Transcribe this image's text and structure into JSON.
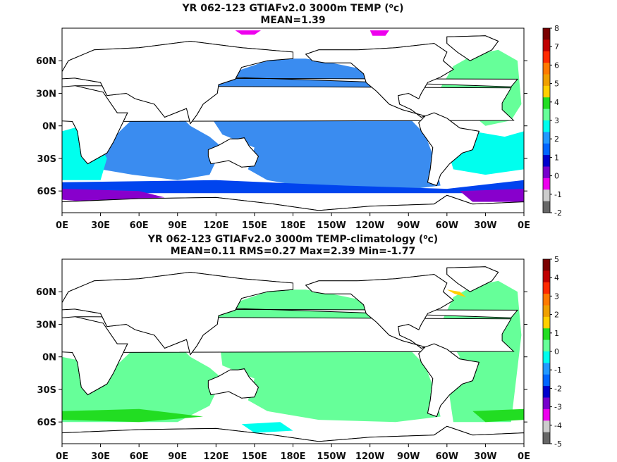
{
  "chart_data": [
    {
      "type": "heatmap",
      "title_main": "YR 062-123 GTIAFv2.0 3000m TEMP (",
      "title_unit": "o",
      "title_unit_tail": "c)",
      "subtitle": "MEAN=1.39",
      "x_ticks": [
        "0E",
        "30E",
        "60E",
        "90E",
        "120E",
        "150E",
        "180E",
        "150W",
        "120W",
        "90W",
        "60W",
        "30W",
        "0E"
      ],
      "y_ticks": [
        "60N",
        "30N",
        "0N",
        "30S",
        "60S"
      ],
      "lat_range": [
        -80,
        90
      ],
      "lon_range": [
        0,
        360
      ],
      "colorbar": {
        "labels": [
          "8",
          "7",
          "6",
          "5",
          "4",
          "3",
          "2",
          "1",
          "0",
          "-1",
          "-2"
        ],
        "colors": [
          "#7a0000",
          "#c00000",
          "#ff2a00",
          "#ff7a00",
          "#f0a000",
          "#ffd000",
          "#22dd22",
          "#66ff99",
          "#00ffee",
          "#2299ff",
          "#0066ff",
          "#0000cc",
          "#7700cc",
          "#ee00ee",
          "#cccccc",
          "#666666"
        ]
      },
      "regions": [
        {
          "name": "pacific",
          "color": "#3a8cf0",
          "points": [
            [
              115,
              40
            ],
            [
              140,
              52
            ],
            [
              165,
              62
            ],
            [
              190,
              62
            ],
            [
              210,
              58
            ],
            [
              235,
              52
            ],
            [
              245,
              35
            ],
            [
              255,
              20
            ],
            [
              270,
              8
            ],
            [
              283,
              -8
            ],
            [
              290,
              -30
            ],
            [
              295,
              -55
            ],
            [
              260,
              -60
            ],
            [
              200,
              -58
            ],
            [
              160,
              -50
            ],
            [
              145,
              -40
            ],
            [
              150,
              -20
            ],
            [
              125,
              -8
            ],
            [
              115,
              10
            ]
          ]
        },
        {
          "name": "indian",
          "color": "#3a8cf0",
          "points": [
            [
              45,
              -5
            ],
            [
              60,
              12
            ],
            [
              75,
              5
            ],
            [
              90,
              12
            ],
            [
              100,
              0
            ],
            [
              115,
              -10
            ],
            [
              125,
              -20
            ],
            [
              115,
              -45
            ],
            [
              90,
              -50
            ],
            [
              55,
              -45
            ],
            [
              30,
              -40
            ],
            [
              35,
              -20
            ]
          ]
        },
        {
          "name": "atlantic",
          "color": "#66ff99",
          "points": [
            [
              295,
              35
            ],
            [
              305,
              55
            ],
            [
              320,
              65
            ],
            [
              340,
              70
            ],
            [
              355,
              60
            ],
            [
              358,
              20
            ],
            [
              350,
              5
            ],
            [
              330,
              0
            ],
            [
              320,
              10
            ],
            [
              300,
              20
            ]
          ]
        },
        {
          "name": "south-atlantic",
          "color": "#00ffee",
          "points": [
            [
              300,
              -5
            ],
            [
              320,
              -5
            ],
            [
              345,
              -10
            ],
            [
              360,
              -5
            ],
            [
              360,
              -40
            ],
            [
              330,
              -45
            ],
            [
              305,
              -40
            ],
            [
              300,
              -20
            ]
          ]
        },
        {
          "name": "west-indian",
          "color": "#00ffee",
          "points": [
            [
              0,
              -5
            ],
            [
              15,
              0
            ],
            [
              25,
              -10
            ],
            [
              35,
              -30
            ],
            [
              30,
              -50
            ],
            [
              0,
              -50
            ]
          ]
        },
        {
          "name": "southern-blue",
          "color": "#0044ee",
          "points": [
            [
              0,
              -52
            ],
            [
              120,
              -50
            ],
            [
              220,
              -55
            ],
            [
              300,
              -58
            ],
            [
              360,
              -50
            ],
            [
              360,
              -62
            ],
            [
              0,
              -62
            ]
          ]
        },
        {
          "name": "southern-purple",
          "color": "#8800cc",
          "points": [
            [
              0,
              -58
            ],
            [
              60,
              -60
            ],
            [
              80,
              -66
            ],
            [
              20,
              -70
            ],
            [
              0,
              -68
            ]
          ]
        },
        {
          "name": "southern-purple-2",
          "color": "#8800cc",
          "points": [
            [
              310,
              -60
            ],
            [
              360,
              -58
            ],
            [
              360,
              -70
            ],
            [
              320,
              -70
            ]
          ]
        },
        {
          "name": "arctic-magenta",
          "color": "#ee00ee",
          "points": [
            [
              135,
              88
            ],
            [
              155,
              88
            ],
            [
              150,
              84
            ],
            [
              140,
              84
            ]
          ]
        },
        {
          "name": "arctic-magenta-2",
          "color": "#ee00ee",
          "points": [
            [
              240,
              88
            ],
            [
              255,
              88
            ],
            [
              252,
              83
            ],
            [
              242,
              83
            ]
          ]
        }
      ]
    },
    {
      "type": "heatmap",
      "title_main": "YR 062-123 GTIAFv2.0 3000m TEMP-climatology (",
      "title_unit": "o",
      "title_unit_tail": "c)",
      "subtitle": "MEAN=0.11   RMS=0.27   Max=2.39   Min=-1.77",
      "x_ticks": [
        "0E",
        "30E",
        "60E",
        "90E",
        "120E",
        "150E",
        "180E",
        "150W",
        "120W",
        "90W",
        "60W",
        "30W",
        "0E"
      ],
      "y_ticks": [
        "60N",
        "30N",
        "0N",
        "30S",
        "60S"
      ],
      "lat_range": [
        -80,
        90
      ],
      "lon_range": [
        0,
        360
      ],
      "colorbar": {
        "labels": [
          "5",
          "4",
          "3",
          "2",
          "1",
          "0",
          "-1",
          "-2",
          "-3",
          "-4",
          "-5"
        ],
        "colors": [
          "#7a0000",
          "#c00000",
          "#ff2a00",
          "#ff7a00",
          "#f0a000",
          "#ffd000",
          "#22dd22",
          "#66ff99",
          "#00ffee",
          "#2299ff",
          "#0066ff",
          "#0000cc",
          "#7700cc",
          "#ee00ee",
          "#cccccc",
          "#666666"
        ]
      },
      "regions": [
        {
          "name": "pacific",
          "color": "#66ff99",
          "points": [
            [
              120,
              40
            ],
            [
              140,
              52
            ],
            [
              165,
              62
            ],
            [
              190,
              62
            ],
            [
              210,
              58
            ],
            [
              235,
              52
            ],
            [
              245,
              35
            ],
            [
              255,
              20
            ],
            [
              270,
              8
            ],
            [
              283,
              -8
            ],
            [
              290,
              -30
            ],
            [
              295,
              -55
            ],
            [
              260,
              -60
            ],
            [
              200,
              -58
            ],
            [
              160,
              -50
            ],
            [
              145,
              -40
            ],
            [
              150,
              -20
            ],
            [
              125,
              -8
            ]
          ]
        },
        {
          "name": "indian",
          "color": "#66ff99",
          "points": [
            [
              0,
              0
            ],
            [
              20,
              -5
            ],
            [
              45,
              -5
            ],
            [
              60,
              12
            ],
            [
              90,
              12
            ],
            [
              100,
              0
            ],
            [
              115,
              -10
            ],
            [
              125,
              -20
            ],
            [
              115,
              -45
            ],
            [
              90,
              -60
            ],
            [
              30,
              -60
            ],
            [
              0,
              -60
            ]
          ]
        },
        {
          "name": "atlantic",
          "color": "#66ff99",
          "points": [
            [
              295,
              30
            ],
            [
              305,
              55
            ],
            [
              320,
              65
            ],
            [
              340,
              70
            ],
            [
              355,
              60
            ],
            [
              358,
              20
            ],
            [
              350,
              -60
            ],
            [
              305,
              -60
            ],
            [
              300,
              -20
            ],
            [
              310,
              0
            ],
            [
              300,
              20
            ]
          ]
        },
        {
          "name": "southern-green",
          "color": "#22dd22",
          "points": [
            [
              0,
              -50
            ],
            [
              60,
              -48
            ],
            [
              110,
              -55
            ],
            [
              60,
              -60
            ],
            [
              0,
              -58
            ]
          ]
        },
        {
          "name": "southern-green-2",
          "color": "#22dd22",
          "points": [
            [
              320,
              -50
            ],
            [
              360,
              -48
            ],
            [
              360,
              -58
            ],
            [
              330,
              -60
            ]
          ]
        },
        {
          "name": "southern-cyan",
          "color": "#00ffee",
          "points": [
            [
              140,
              -62
            ],
            [
              170,
              -60
            ],
            [
              180,
              -68
            ],
            [
              150,
              -70
            ]
          ]
        },
        {
          "name": "labrador-yellow",
          "color": "#ffd000",
          "points": [
            [
              300,
              62
            ],
            [
              310,
              60
            ],
            [
              315,
              55
            ],
            [
              306,
              58
            ]
          ]
        }
      ]
    }
  ]
}
